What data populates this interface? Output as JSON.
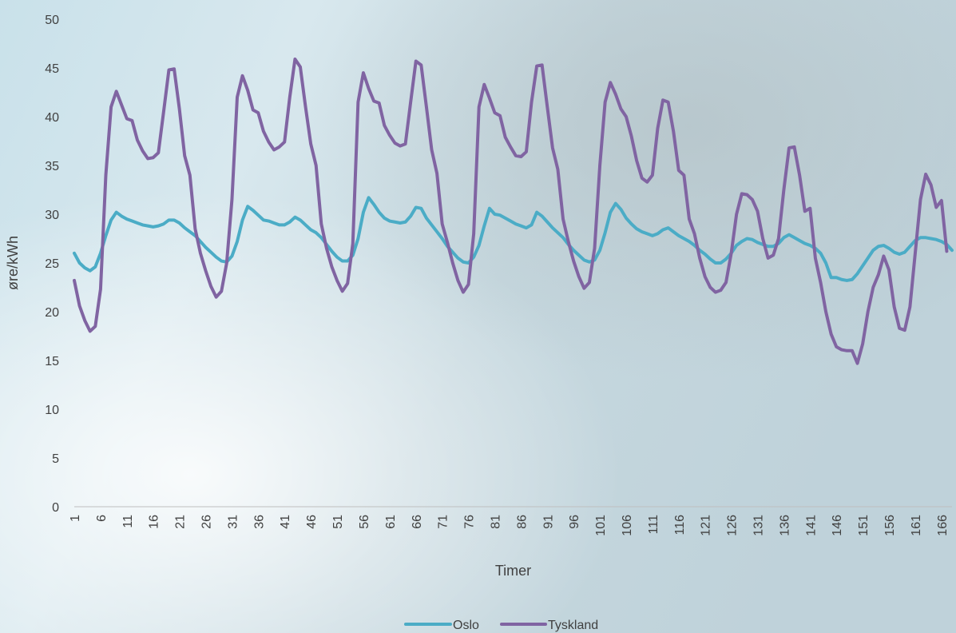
{
  "chart_data": {
    "type": "line",
    "title": "",
    "xlabel": "Timer",
    "ylabel": "øre/kWh",
    "ylim": [
      0,
      50
    ],
    "yticks": [
      0,
      5,
      10,
      15,
      20,
      25,
      30,
      35,
      40,
      45,
      50
    ],
    "xlim": [
      1,
      168
    ],
    "xticks": [
      1,
      6,
      11,
      16,
      21,
      26,
      31,
      36,
      41,
      46,
      51,
      56,
      61,
      66,
      71,
      76,
      81,
      86,
      91,
      96,
      101,
      106,
      111,
      116,
      121,
      126,
      131,
      136,
      141,
      146,
      151,
      156,
      161,
      166
    ],
    "grid": false,
    "legend": "bottom",
    "series": [
      {
        "name": "Oslo",
        "color": "#4BACC6",
        "values": [
          26.0,
          25.0,
          24.5,
          24.2,
          24.6,
          26.0,
          27.8,
          29.4,
          30.2,
          29.8,
          29.5,
          29.3,
          29.1,
          28.9,
          28.8,
          28.7,
          28.8,
          29.0,
          29.4,
          29.4,
          29.1,
          28.6,
          28.2,
          27.8,
          27.2,
          26.6,
          26.1,
          25.6,
          25.2,
          25.1,
          25.7,
          27.2,
          29.4,
          30.8,
          30.4,
          29.9,
          29.4,
          29.3,
          29.1,
          28.9,
          28.9,
          29.2,
          29.7,
          29.4,
          28.9,
          28.4,
          28.1,
          27.6,
          26.9,
          26.2,
          25.6,
          25.2,
          25.2,
          25.8,
          27.5,
          30.2,
          31.7,
          31.0,
          30.2,
          29.6,
          29.3,
          29.2,
          29.1,
          29.2,
          29.8,
          30.7,
          30.6,
          29.6,
          28.9,
          28.2,
          27.5,
          26.7,
          26.1,
          25.5,
          25.1,
          25.0,
          25.6,
          26.8,
          28.8,
          30.6,
          30.0,
          29.9,
          29.6,
          29.3,
          29.0,
          28.8,
          28.6,
          28.9,
          30.2,
          29.8,
          29.2,
          28.6,
          28.1,
          27.6,
          26.9,
          26.3,
          25.8,
          25.3,
          25.1,
          25.3,
          26.3,
          28.1,
          30.2,
          31.1,
          30.5,
          29.6,
          29.0,
          28.5,
          28.2,
          28.0,
          27.8,
          28.0,
          28.4,
          28.6,
          28.2,
          27.8,
          27.5,
          27.2,
          26.8,
          26.3,
          25.9,
          25.4,
          25.0,
          25.0,
          25.4,
          26.0,
          26.8,
          27.2,
          27.5,
          27.4,
          27.1,
          26.9,
          26.7,
          26.7,
          27.0,
          27.6,
          27.9,
          27.6,
          27.3,
          27.0,
          26.8,
          26.5,
          26.0,
          25.0,
          23.5,
          23.5,
          23.3,
          23.2,
          23.3,
          23.9,
          24.7,
          25.5,
          26.3,
          26.7,
          26.8,
          26.5,
          26.1,
          25.9,
          26.1,
          26.7,
          27.3,
          27.6,
          27.6,
          27.5,
          27.4,
          27.2,
          26.9,
          26.3
        ]
      },
      {
        "name": "Tyskland",
        "color": "#8064A2",
        "values": [
          23.2,
          20.6,
          19.1,
          18.0,
          18.5,
          22.3,
          34.0,
          41.0,
          42.6,
          41.2,
          39.8,
          39.6,
          37.6,
          36.5,
          35.7,
          35.8,
          36.3,
          40.5,
          44.8,
          44.9,
          40.8,
          36.0,
          34.0,
          28.5,
          26.0,
          24.2,
          22.6,
          21.5,
          22.1,
          25.0,
          31.5,
          42.0,
          44.2,
          42.7,
          40.7,
          40.4,
          38.5,
          37.4,
          36.6,
          36.9,
          37.4,
          42.0,
          45.9,
          45.1,
          41.0,
          37.2,
          35.0,
          29.0,
          26.5,
          24.6,
          23.2,
          22.1,
          22.9,
          27.0,
          41.5,
          44.5,
          42.9,
          41.6,
          41.4,
          39.1,
          38.1,
          37.3,
          37.0,
          37.2,
          41.5,
          45.7,
          45.3,
          41.0,
          36.6,
          34.2,
          29.0,
          27.1,
          25.0,
          23.2,
          22.0,
          22.8,
          28.0,
          41.0,
          43.3,
          41.9,
          40.4,
          40.1,
          37.9,
          36.9,
          36.0,
          35.9,
          36.4,
          41.5,
          45.2,
          45.3,
          41.0,
          36.8,
          34.6,
          29.5,
          27.2,
          25.2,
          23.6,
          22.4,
          23.0,
          26.5,
          35.0,
          41.5,
          43.5,
          42.3,
          40.8,
          40.0,
          38.0,
          35.5,
          33.7,
          33.3,
          34.0,
          38.8,
          41.7,
          41.5,
          38.5,
          34.5,
          34.0,
          29.5,
          28.0,
          25.5,
          23.6,
          22.5,
          22.0,
          22.2,
          23.0,
          26.0,
          30.0,
          32.1,
          32.0,
          31.5,
          30.3,
          27.5,
          25.5,
          25.8,
          27.5,
          32.5,
          36.8,
          36.9,
          34.0,
          30.3,
          30.6,
          25.5,
          23.0,
          20.0,
          17.7,
          16.4,
          16.1,
          16.0,
          16.0,
          14.7,
          16.7,
          20.0,
          22.5,
          23.8,
          25.7,
          24.3,
          20.5,
          18.3,
          18.1,
          20.5,
          26.0,
          31.5,
          34.1,
          33.0,
          30.7,
          31.4,
          26.2
        ]
      }
    ]
  }
}
